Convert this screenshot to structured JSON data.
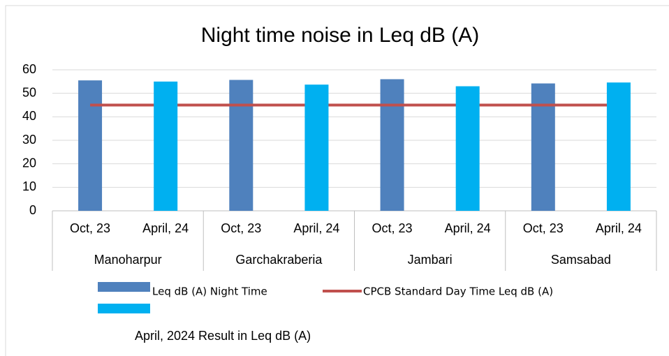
{
  "chart_data": {
    "type": "bar",
    "title": "Night time noise in Leq dB (A)",
    "categories": [
      "Oct, 23",
      "April, 24",
      "Oct, 23",
      "April, 24",
      "Oct, 23",
      "April, 24",
      "Oct, 23",
      "April, 24"
    ],
    "groups": [
      "Manoharpur",
      "Garchakraberia",
      "Jambari",
      "Samsabad"
    ],
    "series": [
      {
        "name": "Leq dB (A) Night Time",
        "type": "bar",
        "color": "#4f81bd",
        "values": [
          55.5,
          null,
          55.7,
          null,
          56,
          null,
          54.2,
          null
        ]
      },
      {
        "name": "CPCB Standard Day Time Leq dB (A)",
        "type": "line",
        "color": "#c0504d",
        "values": [
          45,
          45,
          45,
          45,
          45,
          45,
          45,
          45
        ]
      },
      {
        "name": "April, 2024 Result in Leq dB (A)",
        "type": "bar",
        "color": "#00b0f0",
        "values": [
          null,
          55,
          null,
          53.7,
          null,
          53,
          null,
          54.6
        ]
      }
    ],
    "ylim": [
      0,
      60
    ],
    "yticks": [
      0,
      10,
      20,
      30,
      40,
      50,
      60
    ],
    "grid": true
  }
}
